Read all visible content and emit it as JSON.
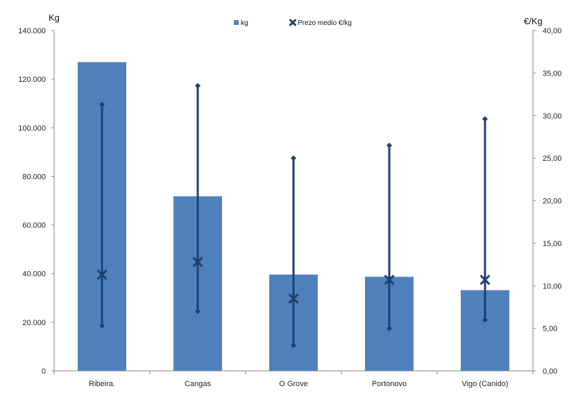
{
  "chart_data": {
    "type": "bar",
    "categories": [
      "Ribeira.",
      "Cangas",
      "O Grove",
      "Portonovo",
      "Vigo (Canido)"
    ],
    "series": [
      {
        "name": "kg",
        "axis": "left",
        "values": [
          127000,
          71800,
          39600,
          38700,
          33200
        ]
      },
      {
        "name": "Prezo medio €/kg",
        "axis": "right",
        "type": "hi-lo-marker",
        "values": [
          11.3,
          12.8,
          8.5,
          10.7,
          10.7
        ],
        "max": [
          31.3,
          33.5,
          25.0,
          26.5,
          29.6
        ],
        "min": [
          5.3,
          7.0,
          3.0,
          5.0,
          6.0
        ]
      }
    ],
    "ylabel_left": "Kg",
    "ylabel_right": "€/Kg",
    "ylim_left": [
      0,
      140000
    ],
    "ylim_right": [
      0,
      40
    ],
    "yticks_left": [
      "0",
      "20.000",
      "40.000",
      "60.000",
      "80.000",
      "100.000",
      "120.000",
      "140.000"
    ],
    "yticks_right": [
      "0,00",
      "5,00",
      "10,00",
      "15,00",
      "20,00",
      "25,00",
      "30,00",
      "35,00",
      "40,00"
    ],
    "legend_position": "top-center",
    "grid": false,
    "colors": {
      "bar": "#4f81bd",
      "line": "#1f3f6b"
    }
  }
}
